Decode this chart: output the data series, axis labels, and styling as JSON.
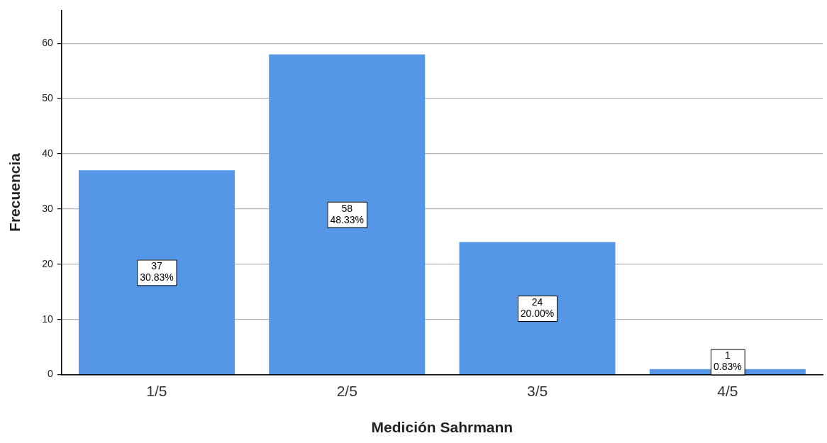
{
  "chart_data": {
    "type": "bar",
    "xlabel": "Medición Sahrmann",
    "ylabel": "Frecuencia",
    "categories": [
      "1/5",
      "2/5",
      "3/5",
      "4/5"
    ],
    "values": [
      37,
      58,
      24,
      1
    ],
    "color": "#5596e6",
    "value_labels": [
      "37\n30.83%",
      "58\n48.33%",
      "24\n20.00%",
      "1\n0.83%"
    ],
    "ylim": [
      0,
      66
    ],
    "yticks": [
      0,
      10,
      20,
      30,
      40,
      50,
      60
    ],
    "grid": "y",
    "legend": false
  }
}
